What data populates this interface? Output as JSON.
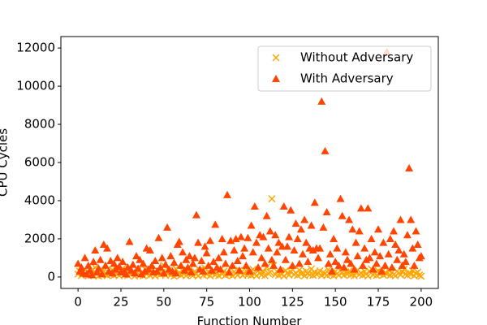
{
  "chart_data": {
    "type": "scatter",
    "xlabel": "Function Number",
    "ylabel": "CPU Cycles",
    "xlim": [
      -10,
      210
    ],
    "ylim": [
      -600,
      12600
    ],
    "xticks": [
      0,
      25,
      50,
      75,
      100,
      125,
      150,
      175,
      200
    ],
    "yticks": [
      0,
      2000,
      4000,
      6000,
      8000,
      10000,
      12000
    ],
    "legend": "upper right",
    "x": [
      0,
      1,
      2,
      3,
      4,
      5,
      6,
      7,
      8,
      9,
      10,
      11,
      12,
      13,
      14,
      15,
      16,
      17,
      18,
      19,
      20,
      21,
      22,
      23,
      24,
      25,
      26,
      27,
      28,
      29,
      30,
      31,
      32,
      33,
      34,
      35,
      36,
      37,
      38,
      39,
      40,
      41,
      42,
      43,
      44,
      45,
      46,
      47,
      48,
      49,
      50,
      51,
      52,
      53,
      54,
      55,
      56,
      57,
      58,
      59,
      60,
      61,
      62,
      63,
      64,
      65,
      66,
      67,
      68,
      69,
      70,
      71,
      72,
      73,
      74,
      75,
      76,
      77,
      78,
      79,
      80,
      81,
      82,
      83,
      84,
      85,
      86,
      87,
      88,
      89,
      90,
      91,
      92,
      93,
      94,
      95,
      96,
      97,
      98,
      99,
      100,
      101,
      102,
      103,
      104,
      105,
      106,
      107,
      108,
      109,
      110,
      111,
      112,
      113,
      114,
      115,
      116,
      117,
      118,
      119,
      120,
      121,
      122,
      123,
      124,
      125,
      126,
      127,
      128,
      129,
      130,
      131,
      132,
      133,
      134,
      135,
      136,
      137,
      138,
      139,
      140,
      141,
      142,
      143,
      144,
      145,
      146,
      147,
      148,
      149,
      150,
      151,
      152,
      153,
      154,
      155,
      156,
      157,
      158,
      159,
      160,
      161,
      162,
      163,
      164,
      165,
      166,
      167,
      168,
      169,
      170,
      171,
      172,
      173,
      174,
      175,
      176,
      177,
      178,
      179,
      180,
      181,
      182,
      183,
      184,
      185,
      186,
      187,
      188,
      189,
      190,
      191,
      192,
      193,
      194,
      195,
      196,
      197,
      198,
      199,
      200
    ],
    "series": [
      {
        "name": "Without Adversary",
        "color": "#ffa500",
        "marker": "x",
        "values": [
          150,
          300,
          80,
          250,
          400,
          120,
          60,
          200,
          350,
          100,
          500,
          180,
          40,
          260,
          90,
          320,
          150,
          70,
          210,
          130,
          380,
          90,
          240,
          160,
          60,
          300,
          450,
          110,
          200,
          80,
          520,
          150,
          270,
          40,
          190,
          330,
          100,
          220,
          60,
          410,
          140,
          280,
          90,
          360,
          200,
          50,
          170,
          310,
          120,
          240,
          600,
          80,
          190,
          350,
          100,
          260,
          40,
          430,
          150,
          210,
          90,
          320,
          180,
          60,
          250,
          400,
          130,
          80,
          290,
          170,
          50,
          360,
          220,
          100,
          480,
          140,
          270,
          60,
          200,
          330,
          110,
          240,
          70,
          390,
          160,
          300,
          90,
          210,
          130,
          450,
          60,
          280,
          180,
          100,
          350,
          230,
          80,
          170,
          310,
          120,
          260,
          90,
          400,
          150,
          60,
          330,
          200,
          110,
          280,
          70,
          520,
          180,
          240,
          4100,
          600,
          130,
          290,
          80,
          210,
          160,
          50,
          340,
          190,
          100,
          270,
          400,
          130,
          210,
          80,
          360,
          150,
          240,
          60,
          300,
          180,
          110,
          420,
          90,
          260,
          140,
          200,
          320,
          70,
          250,
          160,
          90,
          380,
          130,
          210,
          60,
          290,
          170,
          100,
          340,
          220,
          80,
          260,
          150,
          310,
          110,
          180,
          60,
          240,
          370,
          130,
          210,
          90,
          300,
          160,
          50,
          280,
          420,
          120,
          200,
          80,
          330,
          150,
          260,
          100,
          220,
          170,
          350,
          90,
          240,
          130,
          60,
          300,
          200,
          110,
          270,
          400,
          160,
          80,
          230,
          140,
          320,
          60,
          190,
          250,
          100,
          40
        ]
      },
      {
        "name": "With Adversary",
        "color": "#ff4500",
        "marker": "triangle",
        "values": [
          700,
          300,
          500,
          200,
          1000,
          150,
          600,
          350,
          100,
          800,
          1400,
          250,
          450,
          900,
          150,
          1700,
          600,
          1500,
          300,
          850,
          200,
          700,
          400,
          1000,
          550,
          250,
          800,
          300,
          150,
          500,
          1850,
          350,
          650,
          200,
          1100,
          450,
          900,
          150,
          700,
          300,
          1500,
          400,
          1400,
          600,
          250,
          850,
          300,
          2050,
          500,
          1000,
          200,
          650,
          2600,
          400,
          1100,
          300,
          750,
          200,
          1700,
          1850,
          600,
          1300,
          350,
          900,
          500,
          1100,
          250,
          700,
          1000,
          3250,
          1800,
          400,
          850,
          300,
          1600,
          1250,
          600,
          1900,
          350,
          800,
          2750,
          500,
          1000,
          400,
          2000,
          1300,
          700,
          4300,
          250,
          1900,
          600,
          1400,
          2000,
          850,
          350,
          2100,
          1100,
          1500,
          600,
          2050,
          300,
          2700,
          1300,
          3700,
          1800,
          500,
          2200,
          1000,
          2100,
          700,
          3200,
          1500,
          2400,
          900,
          600,
          2200,
          1300,
          1800,
          400,
          1600,
          3700,
          900,
          1600,
          2100,
          3500,
          600,
          1400,
          2800,
          2000,
          700,
          2500,
          1200,
          3000,
          1800,
          800,
          1500,
          2700,
          1400,
          3900,
          1500,
          1000,
          1500,
          9200,
          2600,
          6600,
          3400,
          700,
          1200,
          300,
          2000,
          800,
          1500,
          600,
          4100,
          3200,
          500,
          1300,
          900,
          3000,
          700,
          2500,
          400,
          1800,
          1100,
          2400,
          3600,
          600,
          1500,
          900,
          3600,
          1000,
          2000,
          400,
          1300,
          700,
          2500,
          1100,
          300,
          1800,
          600,
          11800,
          1200,
          2000,
          500,
          2400,
          1700,
          900,
          1400,
          3000,
          600,
          1200,
          800,
          2200,
          5700,
          3000,
          1500,
          600,
          2400,
          1700,
          1000,
          1100
        ]
      }
    ]
  }
}
